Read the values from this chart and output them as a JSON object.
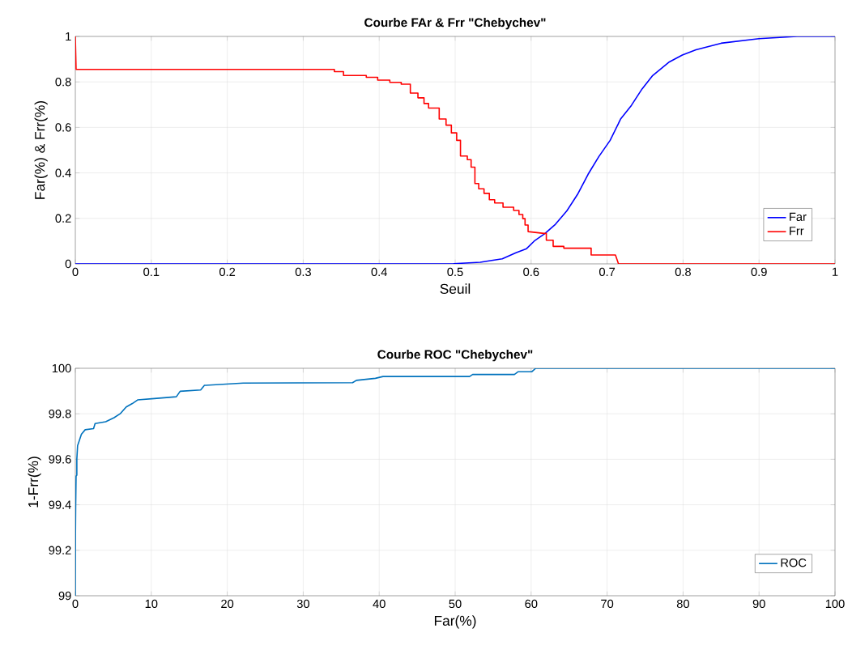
{
  "chart_data": [
    {
      "type": "line",
      "title": "Courbe FAr & Frr \"Chebychev\"",
      "xlabel": "Seuil",
      "ylabel": "Far(%) & Frr(%)",
      "xlim": [
        0,
        1
      ],
      "ylim": [
        0,
        1
      ],
      "xticks": [
        0,
        0.1,
        0.2,
        0.3,
        0.4,
        0.5,
        0.6,
        0.7,
        0.8,
        0.9,
        1
      ],
      "yticks": [
        0,
        0.2,
        0.4,
        0.6,
        0.8,
        1
      ],
      "grid": true,
      "legend": "bottom right",
      "line_style": "solid",
      "series": [
        {
          "name": "Far",
          "color": "#0000ff",
          "x": [
            0,
            0.45,
            0.498,
            0.533,
            0.548,
            0.562,
            0.58,
            0.594,
            0.605,
            0.618,
            0.632,
            0.647,
            0.661,
            0.675,
            0.689,
            0.704,
            0.718,
            0.732,
            0.746,
            0.76,
            0.782,
            0.799,
            0.817,
            0.85,
            0.9,
            0.95,
            1
          ],
          "values": [
            0,
            0,
            0.001,
            0.007,
            0.015,
            0.022,
            0.049,
            0.067,
            0.103,
            0.133,
            0.174,
            0.233,
            0.305,
            0.394,
            0.471,
            0.543,
            0.638,
            0.697,
            0.769,
            0.828,
            0.888,
            0.918,
            0.941,
            0.97,
            0.99,
            1,
            1
          ]
        },
        {
          "name": "Frr",
          "color": "#ff0000",
          "x": [
            0,
            0.001,
            0.341,
            0.341,
            0.353,
            0.353,
            0.383,
            0.383,
            0.398,
            0.398,
            0.414,
            0.414,
            0.429,
            0.429,
            0.441,
            0.441,
            0.451,
            0.451,
            0.459,
            0.459,
            0.465,
            0.465,
            0.479,
            0.479,
            0.488,
            0.488,
            0.495,
            0.495,
            0.502,
            0.502,
            0.507,
            0.507,
            0.516,
            0.516,
            0.521,
            0.521,
            0.526,
            0.526,
            0.531,
            0.531,
            0.538,
            0.538,
            0.545,
            0.545,
            0.552,
            0.552,
            0.563,
            0.563,
            0.577,
            0.577,
            0.584,
            0.584,
            0.589,
            0.589,
            0.592,
            0.592,
            0.596,
            0.596,
            0.617,
            0.62,
            0.62,
            0.629,
            0.629,
            0.643,
            0.643,
            0.679,
            0.679,
            0.711,
            0.715,
            1
          ],
          "values": [
            1,
            0.855,
            0.855,
            0.845,
            0.845,
            0.828,
            0.828,
            0.82,
            0.82,
            0.808,
            0.808,
            0.798,
            0.798,
            0.79,
            0.79,
            0.751,
            0.751,
            0.73,
            0.73,
            0.705,
            0.705,
            0.685,
            0.685,
            0.637,
            0.637,
            0.61,
            0.61,
            0.576,
            0.576,
            0.543,
            0.543,
            0.474,
            0.474,
            0.458,
            0.458,
            0.425,
            0.425,
            0.353,
            0.353,
            0.33,
            0.33,
            0.31,
            0.31,
            0.282,
            0.282,
            0.268,
            0.268,
            0.249,
            0.249,
            0.235,
            0.235,
            0.217,
            0.217,
            0.199,
            0.199,
            0.171,
            0.171,
            0.142,
            0.134,
            0.134,
            0.104,
            0.104,
            0.077,
            0.077,
            0.069,
            0.069,
            0.039,
            0.039,
            0,
            0
          ]
        }
      ]
    },
    {
      "type": "line",
      "title": "Courbe ROC \"Chebychev\"",
      "xlabel": "Far(%)",
      "ylabel": "1-Frr(%)",
      "xlim": [
        0,
        100
      ],
      "ylim": [
        99,
        100
      ],
      "xticks": [
        0,
        10,
        20,
        30,
        40,
        50,
        60,
        70,
        80,
        90,
        100
      ],
      "yticks": [
        99,
        99.2,
        99.4,
        99.6,
        99.8,
        100
      ],
      "grid": true,
      "legend": "bottom right",
      "line_style": "solid",
      "series": [
        {
          "name": "ROC",
          "color": "#0072bd",
          "x": [
            0,
            0.02,
            0.05,
            0.1,
            0.2,
            0.2,
            0.3,
            0.5,
            0.8,
            1.3,
            2.4,
            2.6,
            4.0,
            5.1,
            5.9,
            6.7,
            7.5,
            8.2,
            10.4,
            13.3,
            13.8,
            16.5,
            17,
            22.1,
            36.5,
            37,
            39.5,
            40.5,
            51.9,
            52.3,
            57.8,
            58.3,
            60.1,
            60.6,
            100
          ],
          "values": [
            99,
            99.27,
            99.4,
            99.526,
            99.53,
            99.6,
            99.66,
            99.68,
            99.71,
            99.73,
            99.735,
            99.757,
            99.765,
            99.783,
            99.8,
            99.83,
            99.845,
            99.861,
            99.867,
            99.875,
            99.899,
            99.905,
            99.925,
            99.935,
            99.937,
            99.947,
            99.956,
            99.964,
            99.964,
            99.973,
            99.973,
            99.985,
            99.985,
            100,
            100
          ]
        }
      ]
    }
  ]
}
